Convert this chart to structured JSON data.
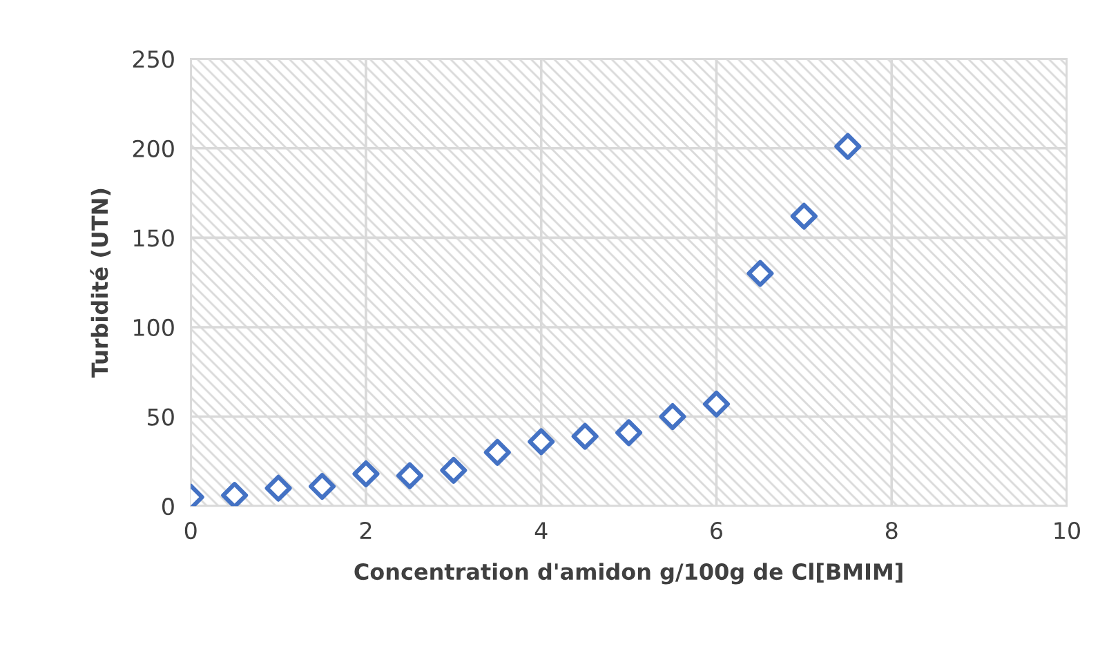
{
  "chart_data": {
    "type": "scatter",
    "xlabel": "Concentration d'amidon g/100g de Cl[BMIM]",
    "ylabel": "Turbidité (UTN)",
    "x": [
      0,
      0.5,
      1,
      1.5,
      2,
      2.5,
      3,
      3.5,
      4,
      4.5,
      5,
      5.5,
      6,
      6.5,
      7,
      7.5
    ],
    "series": [
      {
        "color": "#4472c4",
        "values": [
          5,
          6,
          10,
          11,
          18,
          17,
          20,
          30,
          36,
          39,
          41,
          50,
          57,
          130,
          162,
          201
        ]
      }
    ],
    "marker": "diamond",
    "xlim": [
      0,
      10
    ],
    "xticks": [
      0,
      2,
      4,
      6,
      8,
      10
    ],
    "ylim": [
      0,
      250
    ],
    "yticks": [
      0,
      50,
      100,
      150,
      200,
      250
    ],
    "grid": true,
    "legend": false
  }
}
